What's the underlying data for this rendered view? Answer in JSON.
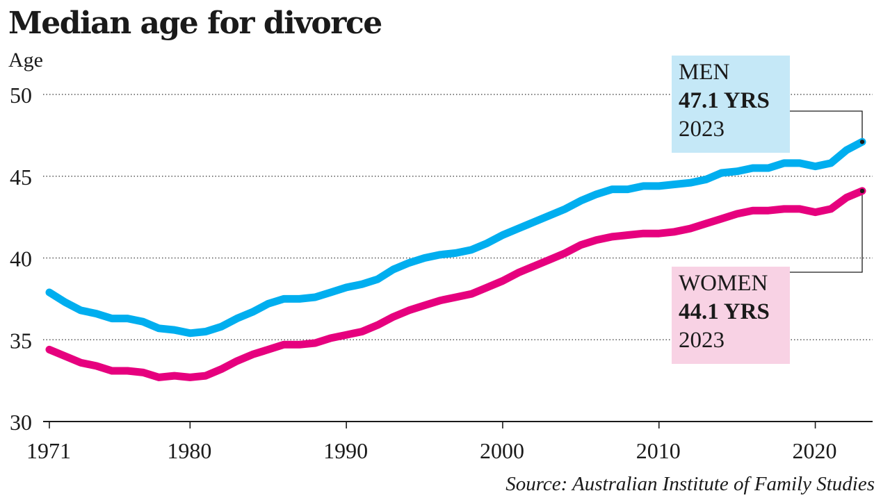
{
  "chart_data": {
    "type": "line",
    "title": "Median age for divorce",
    "ylabel": "Age",
    "xlabel": "",
    "ylim": [
      30,
      50
    ],
    "yticks": [
      30,
      35,
      40,
      45,
      50
    ],
    "xlim": [
      1971,
      2024
    ],
    "xticks": [
      1971,
      1980,
      1990,
      2000,
      2010,
      2020
    ],
    "grid": "horizontal-dotted",
    "x": [
      1971,
      1972,
      1973,
      1974,
      1975,
      1976,
      1977,
      1978,
      1979,
      1980,
      1981,
      1982,
      1983,
      1984,
      1985,
      1986,
      1987,
      1988,
      1989,
      1990,
      1991,
      1992,
      1993,
      1994,
      1995,
      1996,
      1997,
      1998,
      1999,
      2000,
      2001,
      2002,
      2003,
      2004,
      2005,
      2006,
      2007,
      2008,
      2009,
      2010,
      2011,
      2012,
      2013,
      2014,
      2015,
      2016,
      2017,
      2018,
      2019,
      2020,
      2021,
      2022,
      2023
    ],
    "series": [
      {
        "name": "MEN",
        "color": "#00aeef",
        "values": [
          37.9,
          37.3,
          36.8,
          36.6,
          36.3,
          36.3,
          36.1,
          35.7,
          35.6,
          35.4,
          35.5,
          35.8,
          36.3,
          36.7,
          37.2,
          37.5,
          37.5,
          37.6,
          37.9,
          38.2,
          38.4,
          38.7,
          39.3,
          39.7,
          40.0,
          40.2,
          40.3,
          40.5,
          40.9,
          41.4,
          41.8,
          42.2,
          42.6,
          43.0,
          43.5,
          43.9,
          44.2,
          44.2,
          44.4,
          44.4,
          44.5,
          44.6,
          44.8,
          45.2,
          45.3,
          45.5,
          45.5,
          45.8,
          45.8,
          45.6,
          45.8,
          46.6,
          47.1
        ]
      },
      {
        "name": "WOMEN",
        "color": "#e6007e",
        "values": [
          34.4,
          34.0,
          33.6,
          33.4,
          33.1,
          33.1,
          33.0,
          32.7,
          32.8,
          32.7,
          32.8,
          33.2,
          33.7,
          34.1,
          34.4,
          34.7,
          34.7,
          34.8,
          35.1,
          35.3,
          35.5,
          35.9,
          36.4,
          36.8,
          37.1,
          37.4,
          37.6,
          37.8,
          38.2,
          38.6,
          39.1,
          39.5,
          39.9,
          40.3,
          40.8,
          41.1,
          41.3,
          41.4,
          41.5,
          41.5,
          41.6,
          41.8,
          42.1,
          42.4,
          42.7,
          42.9,
          42.9,
          43.0,
          43.0,
          42.8,
          43.0,
          43.7,
          44.1
        ]
      }
    ],
    "callouts": [
      {
        "series": "MEN",
        "label": "MEN",
        "value": "47.1 YRS",
        "year": "2023",
        "bg": "#c5e8f7"
      },
      {
        "series": "WOMEN",
        "label": "WOMEN",
        "value": "44.1 YRS",
        "year": "2023",
        "bg": "#f8d2e4"
      }
    ],
    "source": "Source: Australian Institute of Family Studies"
  }
}
